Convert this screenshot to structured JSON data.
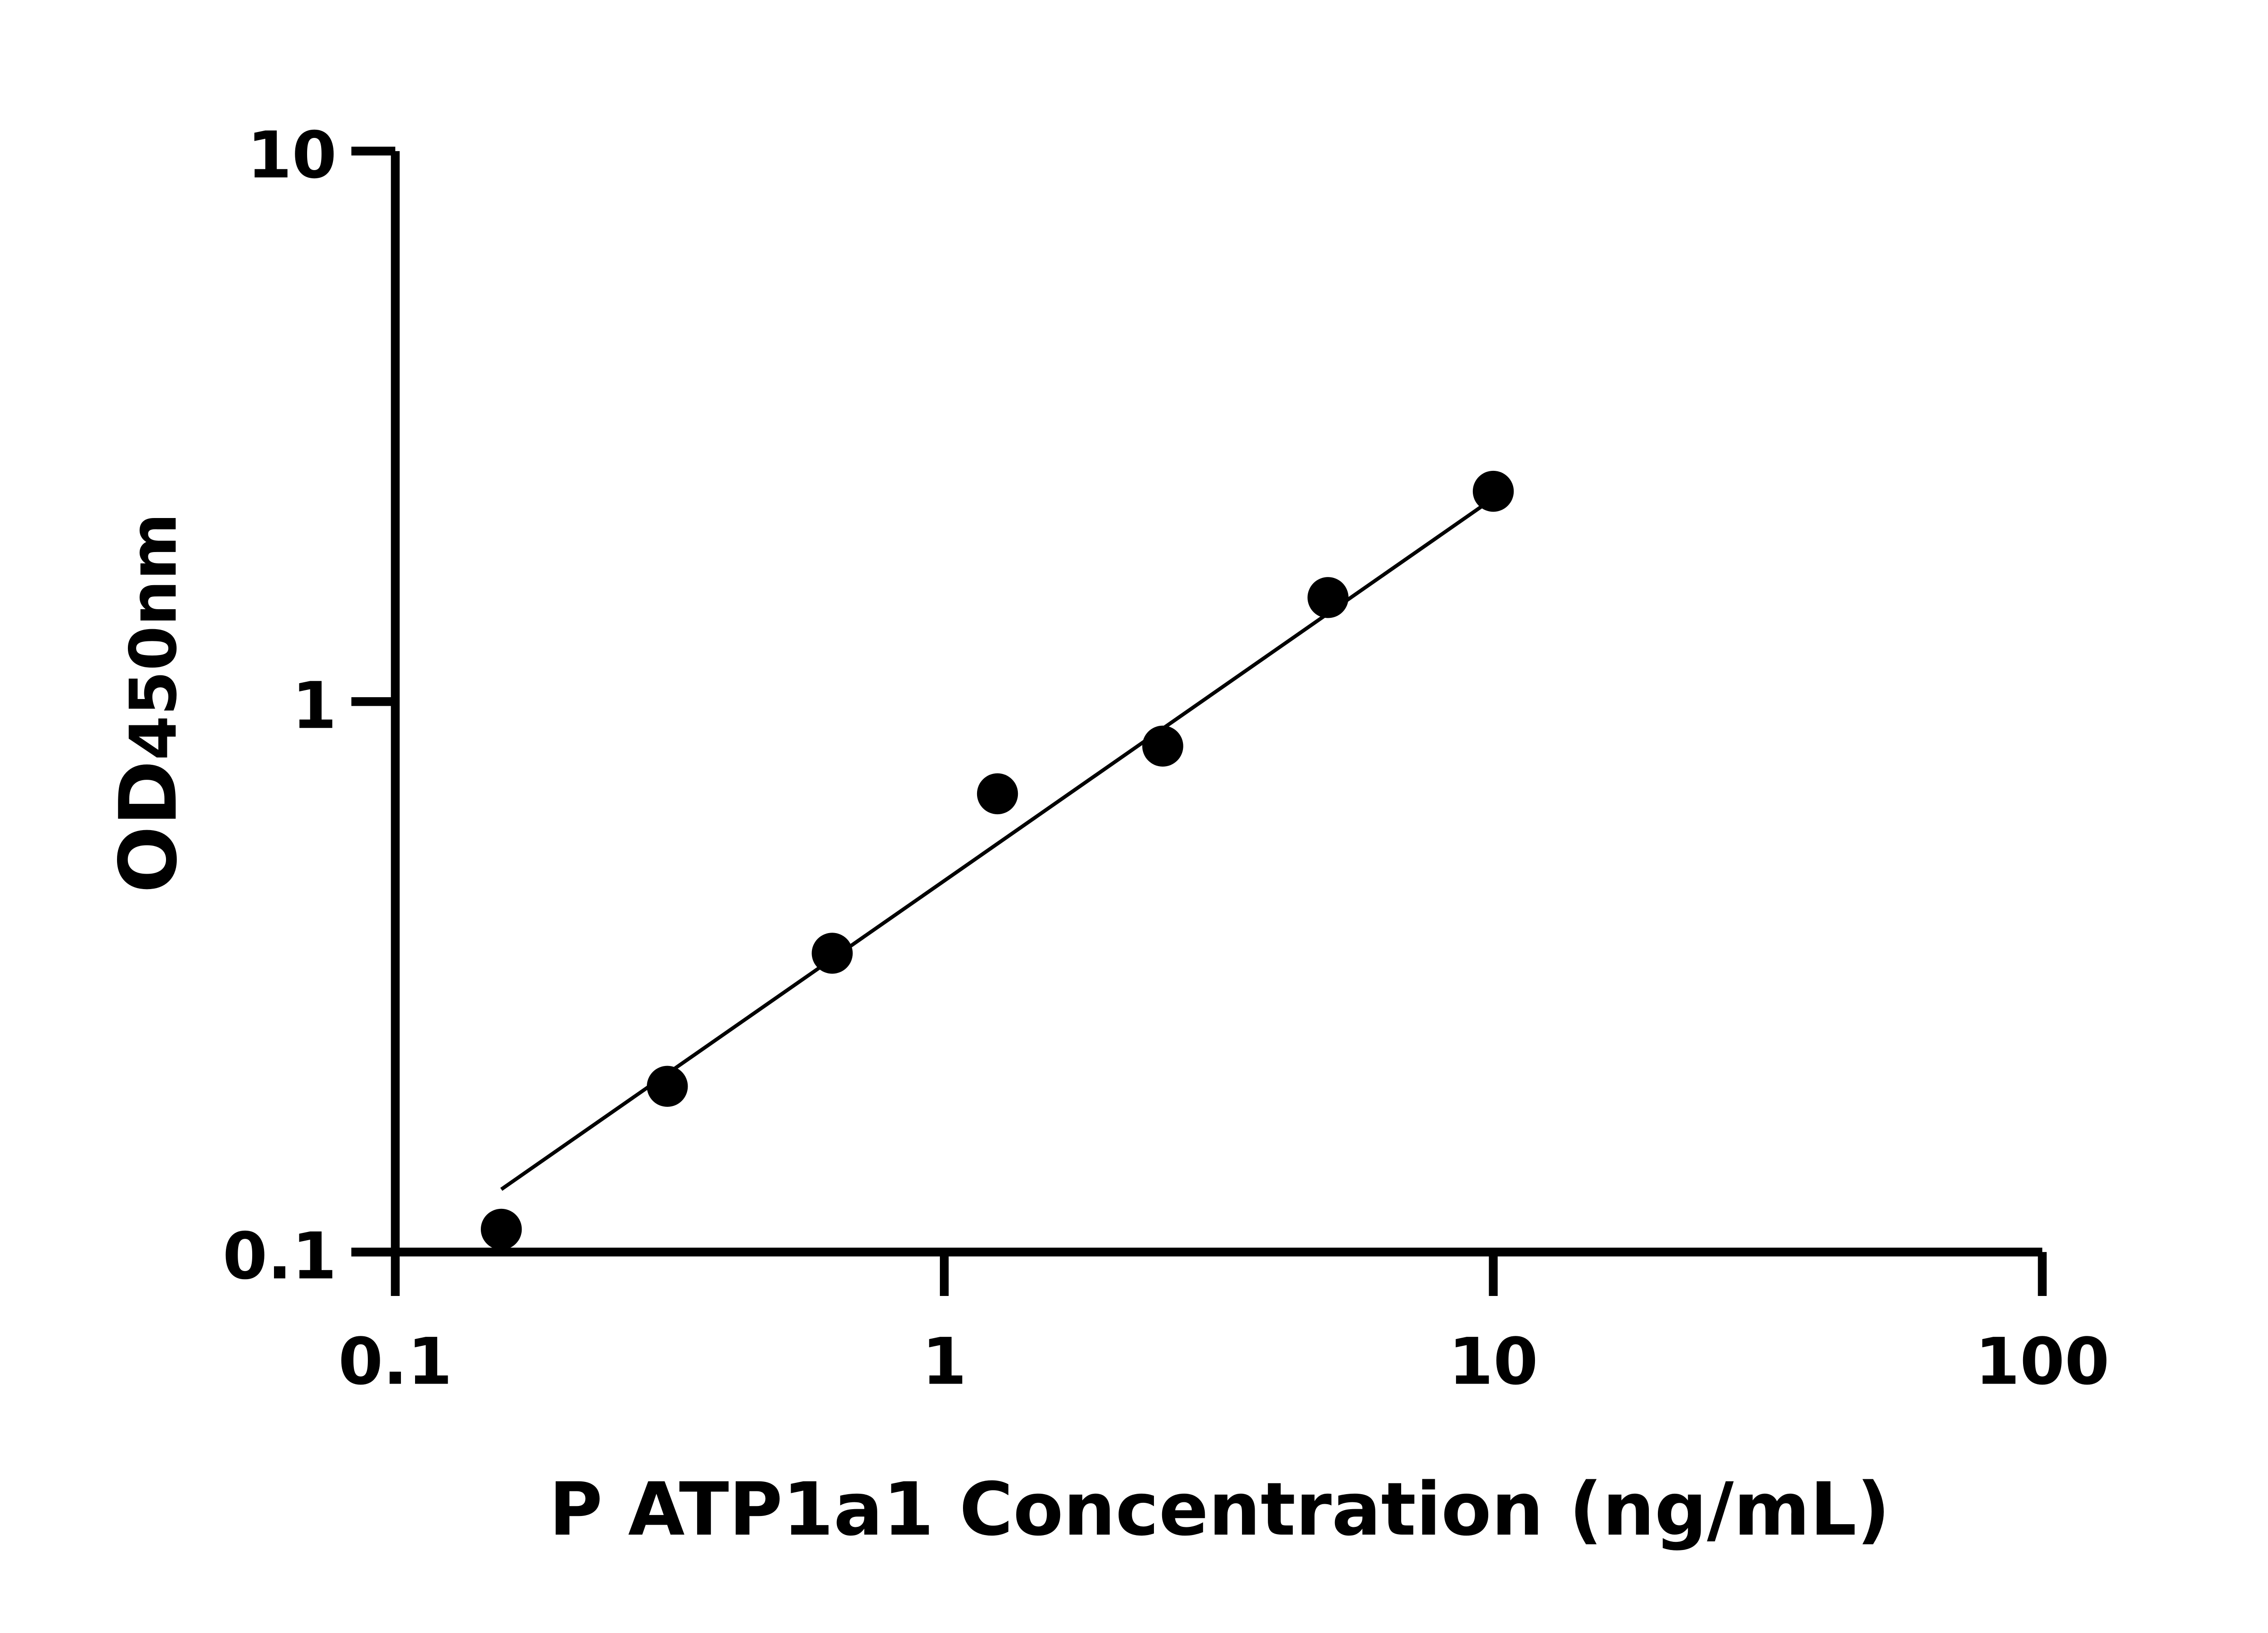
{
  "chart_data": {
    "type": "scatter",
    "title": "",
    "xlabel": "P ATP1a1 Concentration (ng/mL)",
    "ylabel": "OD450nm",
    "ylabel_main": "OD",
    "ylabel_sub": "450nm",
    "x_scale": "log",
    "y_scale": "log",
    "xlim": [
      0.1,
      100
    ],
    "ylim": [
      0.1,
      10
    ],
    "x_ticks": [
      "0.1",
      "1",
      "10",
      "100"
    ],
    "x_tick_values": [
      0.1,
      1,
      10,
      100
    ],
    "y_ticks": [
      "0.1",
      "1",
      "10"
    ],
    "y_tick_values": [
      0.1,
      1,
      10
    ],
    "grid": false,
    "points": [
      {
        "x": 0.156,
        "y": 0.11
      },
      {
        "x": 0.313,
        "y": 0.2
      },
      {
        "x": 0.625,
        "y": 0.349
      },
      {
        "x": 1.25,
        "y": 0.68
      },
      {
        "x": 2.5,
        "y": 0.83
      },
      {
        "x": 5,
        "y": 1.545
      },
      {
        "x": 10,
        "y": 2.41
      }
    ],
    "fit_line": {
      "x": [
        0.156,
        10
      ],
      "y": [
        0.13,
        2.34
      ]
    },
    "marker_color": "#000000",
    "line_color": "#000000"
  }
}
